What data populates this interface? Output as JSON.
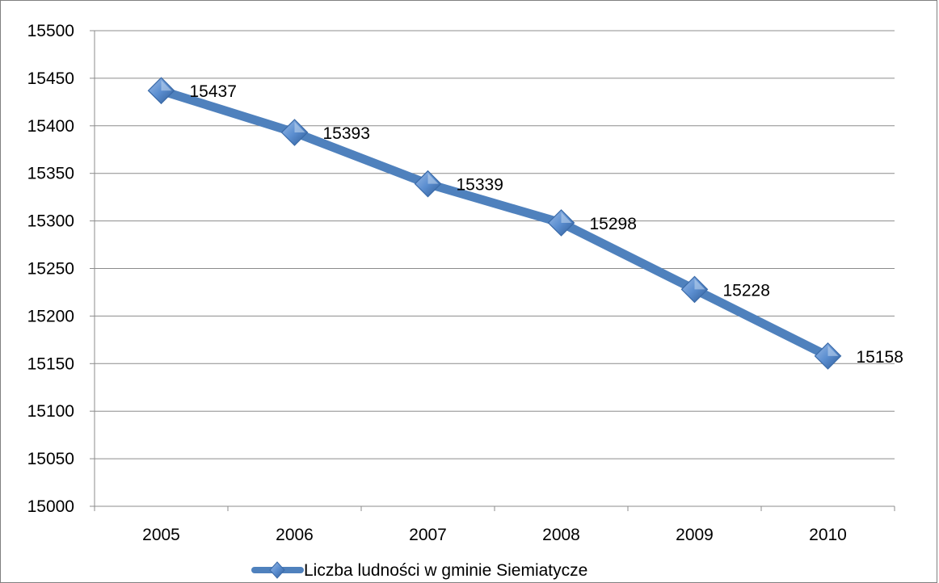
{
  "chart_data": {
    "type": "line",
    "categories": [
      "2005",
      "2006",
      "2007",
      "2008",
      "2009",
      "2010"
    ],
    "series": [
      {
        "name": "Liczba ludności w gminie Siemiatycze",
        "values": [
          15437,
          15393,
          15339,
          15298,
          15228,
          15158
        ],
        "data_labels": [
          "15437",
          "15393",
          "15339",
          "15298",
          "15228",
          "15158"
        ],
        "color": "#4f81bd",
        "marker": "diamond"
      }
    ],
    "y_ticks": [
      "15000",
      "15050",
      "15100",
      "15150",
      "15200",
      "15250",
      "15300",
      "15350",
      "15400",
      "15450",
      "15500"
    ],
    "ylim": [
      15000,
      15500
    ],
    "grid": true,
    "legend_position": "bottom"
  }
}
